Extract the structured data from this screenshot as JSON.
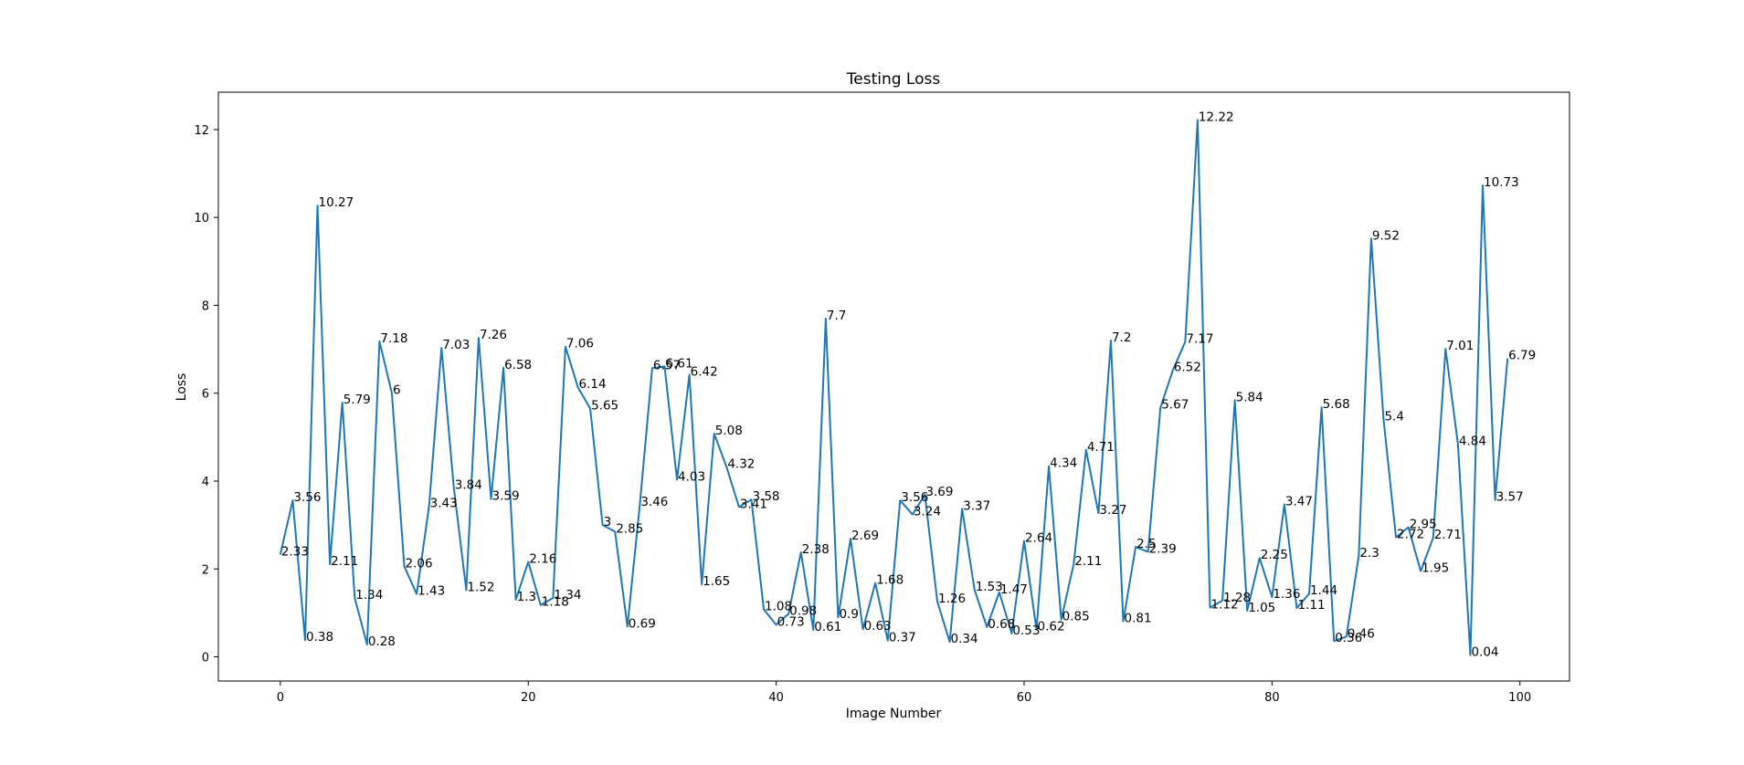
{
  "chart_data": {
    "type": "line",
    "title": "Testing Loss",
    "xlabel": "Image Number",
    "ylabel": "Loss",
    "xlim": [
      -5,
      104
    ],
    "ylim": [
      -0.55,
      12.85
    ],
    "xticks": [
      0,
      20,
      40,
      60,
      80,
      100
    ],
    "yticks": [
      0,
      2,
      4,
      6,
      8,
      10,
      12
    ],
    "grid": false,
    "color": "#1f77b4",
    "series": [
      {
        "values": [
          2.33,
          3.56,
          0.38,
          10.27,
          2.11,
          5.79,
          1.34,
          0.28,
          7.18,
          6.0,
          2.06,
          1.43,
          3.43,
          7.03,
          3.84,
          1.52,
          7.26,
          3.59,
          6.58,
          1.3,
          2.16,
          1.18,
          1.34,
          7.06,
          6.14,
          5.65,
          3.0,
          2.85,
          0.69,
          3.46,
          6.57,
          6.61,
          4.03,
          6.42,
          1.65,
          5.08,
          4.32,
          3.41,
          3.58,
          1.08,
          0.73,
          0.98,
          2.38,
          0.61,
          7.7,
          0.9,
          2.69,
          0.63,
          1.68,
          0.37,
          3.56,
          3.24,
          3.69,
          1.26,
          0.34,
          3.37,
          1.53,
          0.68,
          1.47,
          0.53,
          2.64,
          0.62,
          4.34,
          0.85,
          2.11,
          4.71,
          3.27,
          7.2,
          0.81,
          2.5,
          2.39,
          5.67,
          6.52,
          7.17,
          12.22,
          1.12,
          1.28,
          5.84,
          1.05,
          2.25,
          1.36,
          3.47,
          1.11,
          1.44,
          5.68,
          0.36,
          0.46,
          2.3,
          9.52,
          5.4,
          2.72,
          2.95,
          1.95,
          2.71,
          7.01,
          4.84,
          0.04,
          10.73,
          3.57,
          6.79
        ]
      }
    ]
  }
}
